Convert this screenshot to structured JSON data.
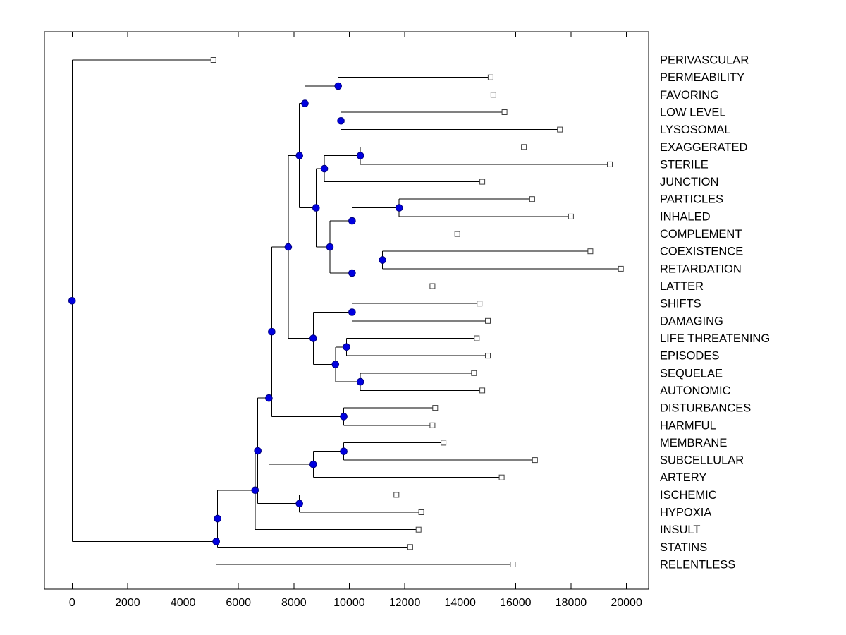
{
  "figure": {
    "background": "#ffffff"
  },
  "chart_data": {
    "type": "dendrogram",
    "orientation": "horizontal",
    "title": "",
    "xlabel": "",
    "ylabel": "",
    "grid": false,
    "legend": false,
    "x_range": [
      -1000,
      20800
    ],
    "x_ticks": [
      0,
      2000,
      4000,
      6000,
      8000,
      10000,
      12000,
      14000,
      16000,
      18000,
      20000
    ],
    "leaf_order": [
      "PERIVASCULAR",
      "PERMEABILITY",
      "FAVORING",
      "LOW LEVEL",
      "LYSOSOMAL",
      "EXAGGERATED",
      "STERILE",
      "JUNCTION",
      "PARTICLES",
      "INHALED",
      "COMPLEMENT",
      "COEXISTENCE",
      "RETARDATION",
      "LATTER",
      "SHIFTS",
      "DAMAGING",
      "LIFE THREATENING",
      "EPISODES",
      "SEQUELAE",
      "AUTONOMIC",
      "DISTURBANCES",
      "HARMFUL",
      "MEMBRANE",
      "SUBCELLULAR",
      "ARTERY",
      "ISCHEMIC",
      "HYPOXIA",
      "INSULT",
      "STATINS",
      "RELENTLESS"
    ],
    "tree": {
      "d": 0,
      "c": [
        {
          "name": "PERIVASCULAR",
          "d": 5100
        },
        {
          "d": 5200,
          "c": [
            {
              "d": 5250,
              "c": [
                {
                  "d": 6600,
                  "c": [
                    {
                      "d": 6700,
                      "c": [
                        {
                          "d": 7100,
                          "c": [
                            {
                              "d": 7200,
                              "c": [
                                {
                                  "d": 7800,
                                  "c": [
                                    {
                                      "d": 8200,
                                      "c": [
                                        {
                                          "d": 8400,
                                          "c": [
                                            {
                                              "d": 9600,
                                              "c": [
                                                {
                                                  "name": "PERMEABILITY",
                                                  "d": 15100
                                                },
                                                {
                                                  "name": "FAVORING",
                                                  "d": 15200
                                                }
                                              ]
                                            },
                                            {
                                              "d": 9700,
                                              "c": [
                                                {
                                                  "name": "LOW LEVEL",
                                                  "d": 15600
                                                },
                                                {
                                                  "name": "LYSOSOMAL",
                                                  "d": 17600
                                                }
                                              ]
                                            }
                                          ]
                                        },
                                        {
                                          "d": 8800,
                                          "c": [
                                            {
                                              "d": 9100,
                                              "c": [
                                                {
                                                  "d": 10400,
                                                  "c": [
                                                    {
                                                      "name": "EXAGGERATED",
                                                      "d": 16300
                                                    },
                                                    {
                                                      "name": "STERILE",
                                                      "d": 19400
                                                    }
                                                  ]
                                                },
                                                {
                                                  "name": "JUNCTION",
                                                  "d": 14800
                                                }
                                              ]
                                            },
                                            {
                                              "d": 9300,
                                              "c": [
                                                {
                                                  "d": 10100,
                                                  "c": [
                                                    {
                                                      "d": 11800,
                                                      "c": [
                                                        {
                                                          "name": "PARTICLES",
                                                          "d": 16600
                                                        },
                                                        {
                                                          "name": "INHALED",
                                                          "d": 18000
                                                        }
                                                      ]
                                                    },
                                                    {
                                                      "name": "COMPLEMENT",
                                                      "d": 13900
                                                    }
                                                  ]
                                                },
                                                {
                                                  "d": 10100,
                                                  "c": [
                                                    {
                                                      "d": 11200,
                                                      "c": [
                                                        {
                                                          "name": "COEXISTENCE",
                                                          "d": 18700
                                                        },
                                                        {
                                                          "name": "RETARDATION",
                                                          "d": 19800
                                                        }
                                                      ]
                                                    },
                                                    {
                                                      "name": "LATTER",
                                                      "d": 13000
                                                    }
                                                  ]
                                                }
                                              ]
                                            }
                                          ]
                                        }
                                      ]
                                    },
                                    {
                                      "d": 8700,
                                      "c": [
                                        {
                                          "d": 10100,
                                          "c": [
                                            {
                                              "name": "SHIFTS",
                                              "d": 14700
                                            },
                                            {
                                              "name": "DAMAGING",
                                              "d": 15000
                                            }
                                          ]
                                        },
                                        {
                                          "d": 9500,
                                          "c": [
                                            {
                                              "d": 9900,
                                              "c": [
                                                {
                                                  "name": "LIFE THREATENING",
                                                  "d": 14600
                                                },
                                                {
                                                  "name": "EPISODES",
                                                  "d": 15000
                                                }
                                              ]
                                            },
                                            {
                                              "d": 10400,
                                              "c": [
                                                {
                                                  "name": "SEQUELAE",
                                                  "d": 14500
                                                },
                                                {
                                                  "name": "AUTONOMIC",
                                                  "d": 14800
                                                }
                                              ]
                                            }
                                          ]
                                        }
                                      ]
                                    }
                                  ]
                                },
                                {
                                  "d": 9800,
                                  "c": [
                                    {
                                      "name": "DISTURBANCES",
                                      "d": 13100
                                    },
                                    {
                                      "name": "HARMFUL",
                                      "d": 13000
                                    }
                                  ]
                                }
                              ]
                            },
                            {
                              "d": 8700,
                              "c": [
                                {
                                  "d": 9800,
                                  "c": [
                                    {
                                      "name": "MEMBRANE",
                                      "d": 13400
                                    },
                                    {
                                      "name": "SUBCELLULAR",
                                      "d": 16700
                                    }
                                  ]
                                },
                                {
                                  "name": "ARTERY",
                                  "d": 15500
                                }
                              ]
                            }
                          ]
                        },
                        {
                          "d": 8200,
                          "c": [
                            {
                              "name": "ISCHEMIC",
                              "d": 11700
                            },
                            {
                              "name": "HYPOXIA",
                              "d": 12600
                            }
                          ]
                        }
                      ]
                    },
                    {
                      "name": "INSULT",
                      "d": 12500
                    }
                  ]
                },
                {
                  "name": "STATINS",
                  "d": 12200
                }
              ]
            },
            {
              "name": "RELENTLESS",
              "d": 15900
            }
          ]
        }
      ]
    },
    "colors": {
      "line": "#000000",
      "axis": "#000000",
      "branch_marker_fill": "#0000e0",
      "branch_marker_edge": "#000080",
      "leaf_marker_fill": "#ffffff",
      "leaf_marker_edge": "#404040",
      "text": "#000000"
    }
  }
}
